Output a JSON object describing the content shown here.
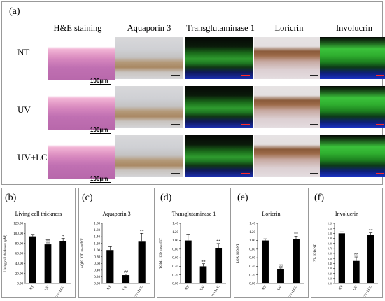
{
  "panel_a": {
    "letter": "(a)",
    "columns": [
      "H&E staining",
      "Aquaporin 3",
      "Transglutaminase 1",
      "Loricrin",
      "Involucrin"
    ],
    "rows": [
      "NT",
      "UV",
      "UV+LCC"
    ],
    "scale_label": "100μm",
    "tile_styles": [
      "he",
      "ihc-blue",
      "if-green",
      "ihc-brown",
      "if-green-strong"
    ]
  },
  "chart_data": [
    {
      "type": "bar",
      "letter": "(b)",
      "title": "Living cell thickness",
      "ylabel": "Living cell thickness (μM)",
      "categories": [
        "NT",
        "UV",
        "UV+LCC"
      ],
      "values": [
        94,
        78,
        85
      ],
      "errors": [
        4,
        3,
        5
      ],
      "sig": [
        "",
        "##",
        "*"
      ],
      "ylim": [
        0,
        120
      ],
      "yticks": [
        "0.00",
        "20.00",
        "40.00",
        "60.00",
        "80.00",
        "100.00",
        "120.00"
      ]
    },
    {
      "type": "bar",
      "letter": "(c)",
      "title": "Aquaporin 3",
      "ylabel": "AQP3 IOD mean/NT",
      "categories": [
        "NT",
        "UV",
        "UV+LCC"
      ],
      "values": [
        1.0,
        0.25,
        1.25
      ],
      "errors": [
        0.1,
        0.03,
        0.25
      ],
      "sig": [
        "",
        "##",
        "**"
      ],
      "ylim": [
        0,
        1.8
      ],
      "yticks": [
        "0.00",
        "0.20",
        "0.40",
        "0.60",
        "0.80",
        "1.00",
        "1.20",
        "1.40",
        "1.60",
        "1.80"
      ]
    },
    {
      "type": "bar",
      "letter": "(d)",
      "title": "Transglutaminase 1",
      "ylabel": "TGM1 IOD mean/NT",
      "categories": [
        "NT",
        "UV",
        "UV+LCC"
      ],
      "values": [
        1.0,
        0.4,
        0.83
      ],
      "errors": [
        0.15,
        0.06,
        0.1
      ],
      "sig": [
        "",
        "##",
        "**"
      ],
      "ylim": [
        0,
        1.4
      ],
      "yticks": [
        "0.00",
        "0.20",
        "0.40",
        "0.60",
        "0.80",
        "1.00",
        "1.20",
        "1.40"
      ]
    },
    {
      "type": "bar",
      "letter": "(e)",
      "title": "Loricrin",
      "ylabel": "LOR IOD/NT",
      "categories": [
        "NT",
        "UV",
        "UV+LCC"
      ],
      "values": [
        1.0,
        0.33,
        1.03
      ],
      "errors": [
        0.04,
        0.03,
        0.07
      ],
      "sig": [
        "",
        "##",
        "**"
      ],
      "ylim": [
        0,
        1.4
      ],
      "yticks": [
        "0.00",
        "0.20",
        "0.40",
        "0.60",
        "0.80",
        "1.00",
        "1.20",
        "1.40"
      ]
    },
    {
      "type": "bar",
      "letter": "(f)",
      "title": "Involucrin",
      "ylabel": "IVL IOD/NT",
      "categories": [
        "NT",
        "UV",
        "UV+LCC"
      ],
      "values": [
        1.0,
        0.45,
        0.97
      ],
      "errors": [
        0.03,
        0.08,
        0.04
      ],
      "sig": [
        "",
        "##",
        "**"
      ],
      "ylim": [
        0,
        1.2
      ],
      "yticks": [
        "0.00",
        "0.10",
        "0.20",
        "0.30",
        "0.40",
        "0.50",
        "0.60",
        "0.70",
        "0.80",
        "0.90",
        "1.00",
        "1.10",
        "1.20"
      ]
    }
  ]
}
